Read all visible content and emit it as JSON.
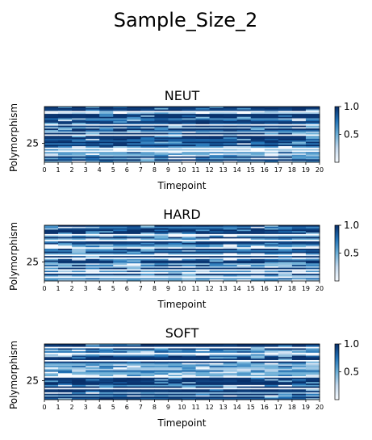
{
  "figure": {
    "suptitle": "Sample_Size_2"
  },
  "chart_data": [
    {
      "type": "heatmap",
      "title": "NEUT",
      "xlabel": "Timepoint",
      "ylabel": "Polymorphism",
      "x_ticks": [
        "0",
        "1",
        "2",
        "3",
        "4",
        "5",
        "6",
        "7",
        "8",
        "9",
        "10",
        "11",
        "12",
        "13",
        "14",
        "15",
        "16",
        "17",
        "18",
        "19",
        "20"
      ],
      "y_ticks": [
        "25"
      ],
      "n_rows": 38,
      "n_cols": 20,
      "colormap": "Blues",
      "value_range": [
        0.0,
        1.0
      ],
      "colorbar_ticks": [
        "0.5",
        "1.0"
      ],
      "seed": 11
    },
    {
      "type": "heatmap",
      "title": "HARD",
      "xlabel": "Timepoint",
      "ylabel": "Polymorphism",
      "x_ticks": [
        "0",
        "1",
        "2",
        "3",
        "4",
        "5",
        "6",
        "7",
        "8",
        "9",
        "10",
        "11",
        "12",
        "13",
        "14",
        "15",
        "16",
        "17",
        "18",
        "19",
        "20"
      ],
      "y_ticks": [
        "25"
      ],
      "n_rows": 38,
      "n_cols": 20,
      "colormap": "Blues",
      "value_range": [
        0.0,
        1.0
      ],
      "colorbar_ticks": [
        "0.5",
        "1.0"
      ],
      "seed": 23
    },
    {
      "type": "heatmap",
      "title": "SOFT",
      "xlabel": "Timepoint",
      "ylabel": "Polymorphism",
      "x_ticks": [
        "0",
        "1",
        "2",
        "3",
        "4",
        "5",
        "6",
        "7",
        "8",
        "9",
        "10",
        "11",
        "12",
        "13",
        "14",
        "15",
        "16",
        "17",
        "18",
        "19",
        "20"
      ],
      "y_ticks": [
        "25"
      ],
      "n_rows": 38,
      "n_cols": 20,
      "colormap": "Blues",
      "value_range": [
        0.0,
        1.0
      ],
      "colorbar_ticks": [
        "0.5",
        "1.0"
      ],
      "seed": 37
    }
  ]
}
